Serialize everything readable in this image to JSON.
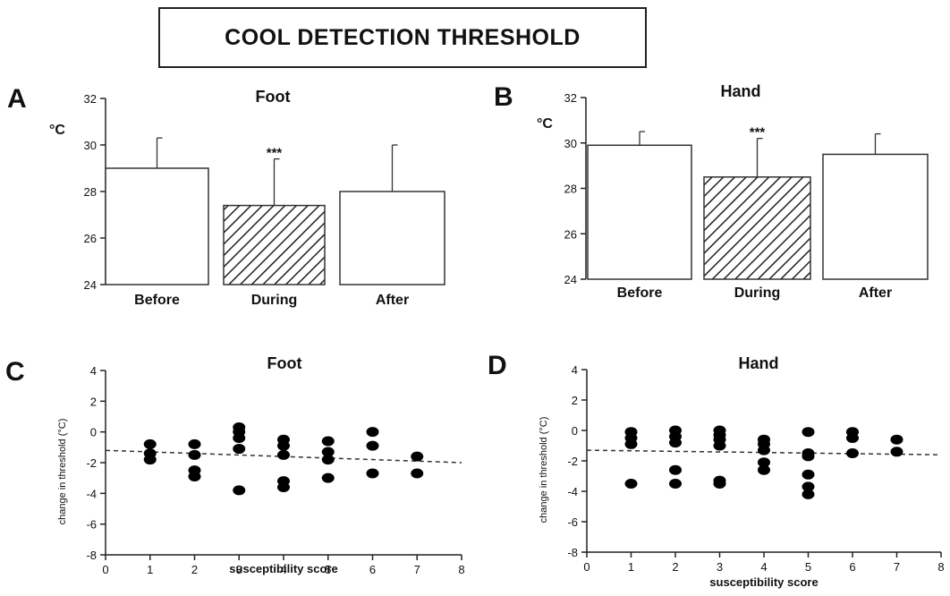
{
  "header": {
    "title": "COOL DETECTION THRESHOLD"
  },
  "chart_data": [
    {
      "panel": "A",
      "type": "bar",
      "title": "Foot",
      "ylabel": "°C",
      "categories": [
        "Before",
        "During",
        "After"
      ],
      "values": [
        29.0,
        27.4,
        28.0
      ],
      "errors": [
        1.3,
        2.0,
        2.0
      ],
      "hatched": [
        false,
        true,
        false
      ],
      "significance": [
        "",
        "***",
        ""
      ],
      "ylim": [
        24,
        32
      ],
      "yticks": [
        24,
        26,
        28,
        30,
        32
      ]
    },
    {
      "panel": "B",
      "type": "bar",
      "title": "Hand",
      "ylabel": "°C",
      "categories": [
        "Before",
        "During",
        "After"
      ],
      "values": [
        29.9,
        28.5,
        29.5
      ],
      "errors": [
        0.6,
        1.7,
        0.9
      ],
      "hatched": [
        false,
        true,
        false
      ],
      "significance": [
        "",
        "***",
        ""
      ],
      "ylim": [
        24,
        32
      ],
      "yticks": [
        24,
        26,
        28,
        30,
        32
      ]
    },
    {
      "panel": "C",
      "type": "scatter",
      "title": "Foot",
      "xlabel": "susceptibility score",
      "ylabel": "change in threshold (°C)",
      "xlim": [
        0,
        8
      ],
      "ylim": [
        -8,
        4
      ],
      "xticks": [
        0,
        1,
        2,
        3,
        4,
        5,
        6,
        7,
        8
      ],
      "yticks": [
        -8,
        -6,
        -4,
        -2,
        0,
        2,
        4
      ],
      "points": [
        [
          1,
          -0.8
        ],
        [
          1,
          -1.4
        ],
        [
          1,
          -1.8
        ],
        [
          2,
          -0.8
        ],
        [
          2,
          -1.5
        ],
        [
          2,
          -2.5
        ],
        [
          2,
          -2.9
        ],
        [
          3,
          0.3
        ],
        [
          3,
          0.0
        ],
        [
          3,
          -0.4
        ],
        [
          3,
          -1.1
        ],
        [
          3,
          -3.8
        ],
        [
          4,
          -0.5
        ],
        [
          4,
          -0.9
        ],
        [
          4,
          -1.5
        ],
        [
          4,
          -3.2
        ],
        [
          4,
          -3.6
        ],
        [
          5,
          -0.6
        ],
        [
          5,
          -1.3
        ],
        [
          5,
          -1.8
        ],
        [
          5,
          -3.0
        ],
        [
          6,
          0.0
        ],
        [
          6,
          -0.9
        ],
        [
          6,
          -2.7
        ],
        [
          7,
          -1.6
        ],
        [
          7,
          -2.7
        ]
      ],
      "trend": [
        [
          0,
          -1.2
        ],
        [
          8,
          -2.0
        ]
      ]
    },
    {
      "panel": "D",
      "type": "scatter",
      "title": "Hand",
      "xlabel": "susceptibility score",
      "ylabel": "change in threshold (°C)",
      "xlim": [
        0,
        8
      ],
      "ylim": [
        -8,
        4
      ],
      "xticks": [
        0,
        1,
        2,
        3,
        4,
        5,
        6,
        7,
        8
      ],
      "yticks": [
        -8,
        -6,
        -4,
        -2,
        0,
        2,
        4
      ],
      "points": [
        [
          1,
          -0.1
        ],
        [
          1,
          -0.5
        ],
        [
          1,
          -0.9
        ],
        [
          1,
          -3.5
        ],
        [
          2,
          0.0
        ],
        [
          2,
          -0.4
        ],
        [
          2,
          -0.8
        ],
        [
          2,
          -2.6
        ],
        [
          2,
          -3.5
        ],
        [
          3,
          0.0
        ],
        [
          3,
          -0.3
        ],
        [
          3,
          -0.6
        ],
        [
          3,
          -1.0
        ],
        [
          3,
          -3.3
        ],
        [
          3,
          -3.5
        ],
        [
          4,
          -0.6
        ],
        [
          4,
          -0.9
        ],
        [
          4,
          -1.3
        ],
        [
          4,
          -2.1
        ],
        [
          4,
          -2.6
        ],
        [
          5,
          -0.1
        ],
        [
          5,
          -1.5
        ],
        [
          5,
          -1.7
        ],
        [
          5,
          -2.9
        ],
        [
          5,
          -3.7
        ],
        [
          5,
          -4.2
        ],
        [
          6,
          -0.1
        ],
        [
          6,
          -0.5
        ],
        [
          6,
          -1.5
        ],
        [
          7,
          -0.6
        ],
        [
          7,
          -1.4
        ]
      ],
      "trend": [
        [
          0,
          -1.3
        ],
        [
          8,
          -1.6
        ]
      ]
    }
  ]
}
